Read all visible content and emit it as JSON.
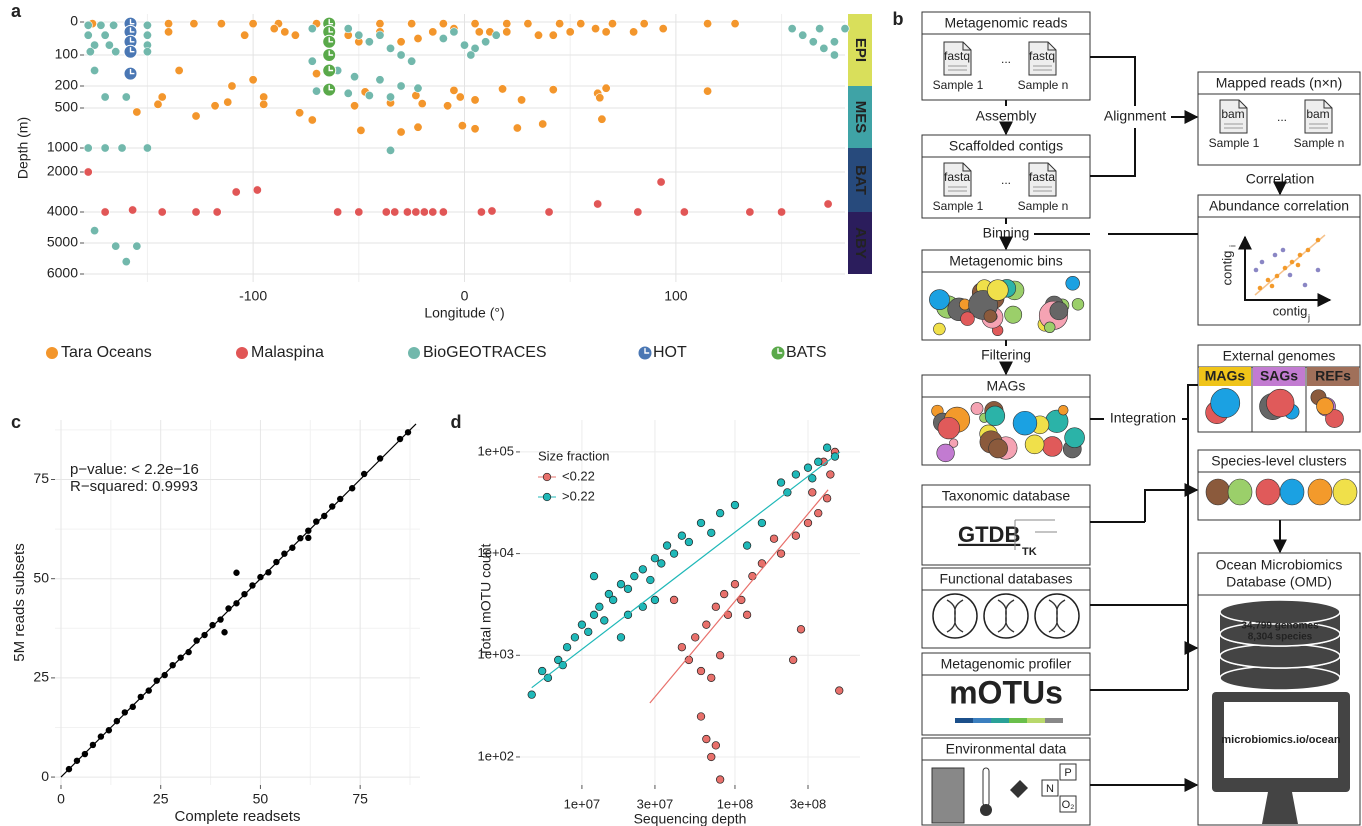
{
  "panel_labels": [
    "a",
    "b",
    "c",
    "d"
  ],
  "chart_data": [
    {
      "type": "scatter",
      "xlabel": "Longitude (°)",
      "ylabel": "Depth (m)",
      "xlim": [
        -180,
        180
      ],
      "xticks": [
        -100,
        0,
        100
      ],
      "ylim": [
        0,
        6000
      ],
      "yticks": [
        0,
        100,
        200,
        500,
        1000,
        2000,
        4000,
        5000,
        6000
      ],
      "grid": true,
      "zones": [
        {
          "label": "EPI",
          "color": "#d9df5b",
          "from": 0,
          "to": 200
        },
        {
          "label": "MES",
          "color": "#3fa3a6",
          "from": 200,
          "to": 1000
        },
        {
          "label": "BAT",
          "color": "#274a7c",
          "from": 1000,
          "to": 4000
        },
        {
          "label": "ABY",
          "color": "#2b1d5c",
          "from": 4000,
          "to": 6000
        }
      ],
      "series": [
        {
          "name": "Tara Oceans",
          "color": "#f3962c",
          "marker": "dot",
          "x": [
            -176,
            -140,
            -128,
            -115,
            -100,
            -88,
            -70,
            -40,
            -25,
            -10,
            5,
            20,
            30,
            45,
            55,
            70,
            85,
            115,
            128,
            -150,
            -140,
            -104,
            -90,
            -85,
            -80,
            -55,
            -50,
            -40,
            -30,
            -22,
            -15,
            -5,
            7,
            12,
            20,
            35,
            42,
            50,
            62,
            67,
            80,
            94,
            -135,
            -110,
            -100,
            -70,
            -143,
            -95,
            -47,
            -23,
            -5,
            18,
            42,
            63,
            67,
            115,
            -145,
            -118,
            -112,
            -95,
            -78,
            -52,
            -35,
            -20,
            -8,
            -2,
            5,
            27,
            64,
            -155,
            -72,
            -49,
            -30,
            -22,
            -1,
            5,
            25,
            37,
            65,
            -127
          ],
          "y": [
            5,
            5,
            5,
            5,
            5,
            5,
            5,
            5,
            5,
            5,
            5,
            5,
            5,
            5,
            5,
            5,
            5,
            5,
            5,
            40,
            30,
            40,
            20,
            30,
            40,
            40,
            60,
            30,
            60,
            50,
            30,
            20,
            30,
            30,
            30,
            40,
            40,
            30,
            20,
            30,
            30,
            20,
            150,
            200,
            180,
            160,
            350,
            350,
            280,
            330,
            260,
            240,
            250,
            300,
            230,
            270,
            450,
            470,
            420,
            450,
            560,
            470,
            430,
            440,
            470,
            350,
            390,
            390,
            360,
            550,
            650,
            780,
            800,
            740,
            720,
            760,
            750,
            700,
            640,
            600
          ]
        },
        {
          "name": "Malaspina",
          "color": "#e15656",
          "marker": "dot",
          "x": [
            -178,
            -170,
            -157,
            -143,
            -127,
            -117,
            -108,
            -98,
            -60,
            -50,
            -37,
            -33,
            -27,
            -23,
            -19,
            -15,
            -10,
            8,
            13,
            40,
            63,
            82,
            93,
            104,
            135,
            150,
            172
          ],
          "y": [
            2000,
            4000,
            3900,
            4000,
            4000,
            4000,
            3000,
            2900,
            4000,
            4000,
            4000,
            4000,
            4000,
            4000,
            4000,
            4000,
            4000,
            4000,
            3950,
            4000,
            3600,
            4000,
            2500,
            4000,
            4000,
            4000,
            3600
          ]
        },
        {
          "name": "BioGEOTRACES",
          "color": "#72b8ac",
          "marker": "dot",
          "x": [
            -178,
            -172,
            -166,
            -150,
            -178,
            -170,
            -150,
            -175,
            -168,
            -150,
            -177,
            -165,
            -150,
            -175,
            -160,
            -170,
            -178,
            -170,
            -162,
            -150,
            -175,
            -165,
            -155,
            -160,
            -72,
            -65,
            -55,
            -50,
            -45,
            -40,
            -35,
            -30,
            -25,
            -72,
            -60,
            -52,
            -40,
            -30,
            -22,
            -70,
            -55,
            -45,
            -35,
            -35,
            -10,
            -5,
            0,
            5,
            10,
            15,
            3,
            155,
            160,
            165,
            170,
            175,
            180,
            168,
            175
          ],
          "y": [
            10,
            10,
            10,
            10,
            40,
            40,
            40,
            70,
            70,
            70,
            90,
            90,
            90,
            150,
            350,
            350,
            1000,
            1000,
            1000,
            1000,
            4600,
            5100,
            5100,
            5600,
            20,
            30,
            20,
            40,
            60,
            40,
            80,
            100,
            120,
            120,
            150,
            170,
            180,
            200,
            230,
            270,
            300,
            330,
            350,
            1100,
            50,
            30,
            70,
            80,
            60,
            40,
            100,
            20,
            40,
            60,
            80,
            100,
            20,
            20,
            60
          ]
        },
        {
          "name": "HOT",
          "color": "#4a77b4",
          "marker": "clock",
          "x": [
            -158,
            -158,
            -158,
            -158,
            -158
          ],
          "y": [
            5,
            30,
            60,
            90,
            160
          ]
        },
        {
          "name": "BATS",
          "color": "#5aa94a",
          "marker": "clock",
          "x": [
            -64,
            -64,
            -64,
            -64,
            -64,
            -64
          ],
          "y": [
            5,
            30,
            60,
            100,
            150,
            250
          ]
        }
      ]
    },
    {
      "type": "scatter",
      "xlabel": "Complete readsets",
      "ylabel": "5M reads subsets",
      "annotations": [
        "p−value: < 2.2e−16",
        "R−squared:  0.9993"
      ],
      "xlim": [
        -1.5,
        90
      ],
      "xticks": [
        0,
        25,
        50,
        75
      ],
      "ylim": [
        -2,
        90
      ],
      "yticks": [
        0,
        25,
        50,
        75
      ],
      "grid": true,
      "series": [
        {
          "color": "#000000",
          "x": [
            2,
            4,
            6,
            8,
            10,
            12,
            14,
            16,
            18,
            20,
            22,
            24,
            26,
            28,
            30,
            32,
            34,
            36,
            38,
            40,
            42,
            44,
            46,
            48,
            50,
            52,
            54,
            56,
            58,
            60,
            62,
            64,
            66,
            68,
            70,
            73,
            76,
            80,
            85,
            87,
            44,
            62,
            41
          ],
          "y": [
            2,
            4.1,
            5.8,
            8.1,
            10.2,
            11.8,
            14.1,
            16.3,
            17.7,
            20.2,
            21.8,
            24.3,
            25.7,
            28.2,
            30.1,
            31.5,
            34.4,
            35.8,
            38.3,
            39.7,
            42.5,
            43.8,
            46.1,
            48.3,
            50.4,
            51.6,
            54.2,
            56.3,
            57.8,
            60.2,
            62.1,
            64.4,
            65.8,
            68.2,
            70.1,
            72.8,
            76.4,
            80.3,
            85.2,
            86.9,
            51.5,
            60.3,
            36.5
          ],
          "fit": {
            "x": [
              0,
              89
            ],
            "y": [
              0,
              89
            ]
          }
        }
      ]
    },
    {
      "type": "scatter",
      "log_x": true,
      "log_y": true,
      "xlabel": "Sequencing depth",
      "ylabel": "Total mOTU count",
      "legend_title": "Size fraction",
      "legend": "top-left",
      "grid": true,
      "xlim": [
        3940000,
        656000000
      ],
      "xticks": [
        {
          "value": 10000000,
          "label": "1e+07"
        },
        {
          "value": 30000000,
          "label": "3e+07"
        },
        {
          "value": 100000000,
          "label": "1e+08"
        },
        {
          "value": 300000000,
          "label": "3e+08"
        }
      ],
      "ylim": [
        53,
        206000
      ],
      "yticks": [
        {
          "value": 100,
          "label": "1e+02"
        },
        {
          "value": 1000,
          "label": "1e+03"
        },
        {
          "value": 10000,
          "label": "1e+04"
        },
        {
          "value": 100000,
          "label": "1e+05"
        }
      ],
      "series": [
        {
          "name": "<0.22",
          "color": "#e8706b",
          "x": [
            45000000,
            50000000,
            55000000,
            60000000,
            65000000,
            70000000,
            75000000,
            80000000,
            85000000,
            90000000,
            100000000,
            110000000,
            60000000,
            65000000,
            70000000,
            80000000,
            75000000,
            150000000,
            130000000,
            120000000,
            200000000,
            250000000,
            300000000,
            350000000,
            400000000,
            420000000,
            450000000,
            380000000,
            480000000,
            270000000,
            240000000,
            40000000,
            180000000,
            320000000
          ],
          "y": [
            1200,
            900,
            1500,
            700,
            2000,
            600,
            3000,
            1000,
            4000,
            2500,
            5000,
            3500,
            250,
            150,
            100,
            60,
            130,
            8000,
            6000,
            2500,
            10000,
            15000,
            20000,
            25000,
            35000,
            60000,
            100000,
            80000,
            450,
            1800,
            900,
            3500,
            14000,
            40000
          ],
          "fit": {
            "x": [
              27800000,
              406000000
            ],
            "y": [
              339,
              42400
            ]
          }
        },
        {
          "name": ">0.22",
          "color": "#1fb8b8",
          "x": [
            4700000,
            5500000,
            6000000,
            7000000,
            8000000,
            7500000,
            9000000,
            10000000,
            11000000,
            12000000,
            13000000,
            14000000,
            15000000,
            16000000,
            18000000,
            20000000,
            22000000,
            25000000,
            28000000,
            30000000,
            33000000,
            36000000,
            40000000,
            45000000,
            50000000,
            20000000,
            25000000,
            30000000,
            60000000,
            70000000,
            80000000,
            100000000,
            120000000,
            150000000,
            200000000,
            250000000,
            300000000,
            350000000,
            400000000,
            320000000,
            450000000,
            220000000,
            18000000,
            12000000
          ],
          "y": [
            410,
            700,
            600,
            900,
            1200,
            800,
            1500,
            2000,
            1700,
            2500,
            3000,
            2200,
            4000,
            3500,
            5000,
            4500,
            6000,
            7000,
            5500,
            9000,
            8000,
            12000,
            10000,
            15000,
            13000,
            2500,
            3000,
            3500,
            20000,
            16000,
            25000,
            30000,
            12000,
            20000,
            50000,
            60000,
            70000,
            80000,
            110000,
            55000,
            90000,
            40000,
            1500,
            6000
          ],
          "fit": {
            "x": [
              4700000,
              485000000
            ],
            "y": [
              480,
              100000
            ]
          }
        }
      ]
    }
  ],
  "diagram": {
    "metagenomic_reads": {
      "title": "Metagenomic reads",
      "file": "fastq",
      "first": "Sample 1",
      "ellipsis": "...",
      "last": "Sample n"
    },
    "scaffolded_contigs": {
      "title": "Scaffolded contigs",
      "file": "fasta",
      "first": "Sample 1",
      "ellipsis": "...",
      "last": "Sample n"
    },
    "mapped_reads": {
      "title": "Mapped reads (n×n)",
      "file": "bam",
      "first": "Sample 1",
      "ellipsis": "...",
      "last": "Sample n"
    },
    "abundance_correlation": {
      "title": "Abundance correlation",
      "y_label": "contig",
      "y_sub": "i",
      "x_label": "contig",
      "x_sub": "j"
    },
    "metagenomic_bins": {
      "title": "Metagenomic bins"
    },
    "mags": {
      "title": "MAGs"
    },
    "external_genomes": {
      "title": "External genomes",
      "groups": [
        "MAGs",
        "SAGs",
        "REFs"
      ]
    },
    "species_clusters": {
      "title": "Species-level clusters"
    },
    "taxonomic_database": {
      "title": "Taxonomic database",
      "logo": "GTDB",
      "logo2": "TK"
    },
    "functional_databases": {
      "title": "Functional databases"
    },
    "metagenomic_profiler": {
      "title": "Metagenomic profiler",
      "logo": "mOTUs"
    },
    "environmental_data": {
      "title": "Environmental data",
      "elements": [
        "N",
        "P",
        "O₂"
      ]
    },
    "omd": {
      "title_lines": [
        "Ocean Microbiomics",
        "Database (OMD)"
      ],
      "genomes": "34,799 genomes",
      "species": "8,304 species",
      "url": "microbiomics.io/ocean"
    },
    "edges": {
      "assembly": "Assembly",
      "binning": "Binning",
      "filtering": "Filtering",
      "alignment": "Alignment",
      "correlation": "Correlation",
      "integration": "Integration"
    }
  }
}
